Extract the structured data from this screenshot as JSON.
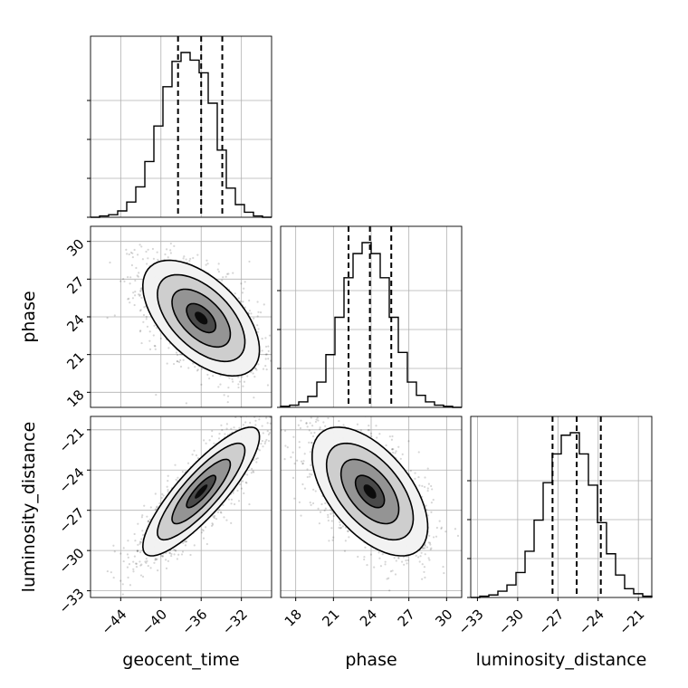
{
  "chart_data": {
    "type": "corner",
    "parameters": [
      "geocent_time",
      "phase",
      "luminosity_distance"
    ],
    "axis_labels": {
      "geocent_time": "geocent_time",
      "phase": "phase",
      "luminosity_distance": "luminosity_distance"
    },
    "ranges": {
      "geocent_time": [
        -47.0,
        -29.0
      ],
      "phase": [
        16.8,
        31.2
      ],
      "luminosity_distance": [
        -33.5,
        -20.0
      ]
    },
    "ticks": {
      "geocent_time": [
        -44,
        -40,
        -36,
        -32
      ],
      "phase": [
        18,
        21,
        24,
        27,
        30
      ],
      "luminosity_distance": [
        -33,
        -30,
        -27,
        -24,
        -21
      ]
    },
    "tick_labels": {
      "geocent_time": [
        "−44",
        "−40",
        "−36",
        "−32"
      ],
      "phase": [
        "18",
        "21",
        "24",
        "27",
        "30"
      ],
      "luminosity_distance": [
        "−33",
        "−30",
        "−27",
        "−24",
        "−21"
      ]
    },
    "quantiles": {
      "geocent_time": [
        -38.3,
        -36.0,
        -33.9
      ],
      "phase": [
        22.2,
        23.9,
        25.6
      ],
      "luminosity_distance": [
        -27.4,
        -25.6,
        -23.8
      ]
    },
    "histograms": {
      "geocent_time": [
        0,
        1,
        2,
        5,
        12,
        24,
        44,
        72,
        103,
        123,
        130,
        124,
        114,
        90,
        53,
        23,
        10,
        4,
        1,
        0
      ],
      "phase": [
        1,
        2,
        5,
        10,
        23,
        48,
        82,
        118,
        140,
        150,
        140,
        118,
        82,
        50,
        23,
        11,
        5,
        2,
        1,
        0
      ],
      "luminosity_distance": [
        0,
        1,
        2,
        5,
        10,
        20,
        37,
        62,
        92,
        115,
        130,
        132,
        115,
        90,
        60,
        35,
        18,
        7,
        3,
        1
      ]
    },
    "pairs": [
      {
        "x": "geocent_time",
        "y": "phase",
        "mean": [
          -36.0,
          23.9
        ],
        "sd": [
          2.9,
          2.3
        ],
        "corr": -0.55
      },
      {
        "x": "geocent_time",
        "y": "luminosity_distance",
        "mean": [
          -36.0,
          -25.6
        ],
        "sd": [
          2.9,
          2.4
        ],
        "corr": 0.85
      },
      {
        "x": "phase",
        "y": "luminosity_distance",
        "mean": [
          23.9,
          -25.6
        ],
        "sd": [
          2.3,
          2.4
        ],
        "corr": -0.55
      }
    ],
    "grid": true,
    "colors": {
      "line": "#000000",
      "grid": "#b0b0b0",
      "points": "#000000"
    }
  }
}
